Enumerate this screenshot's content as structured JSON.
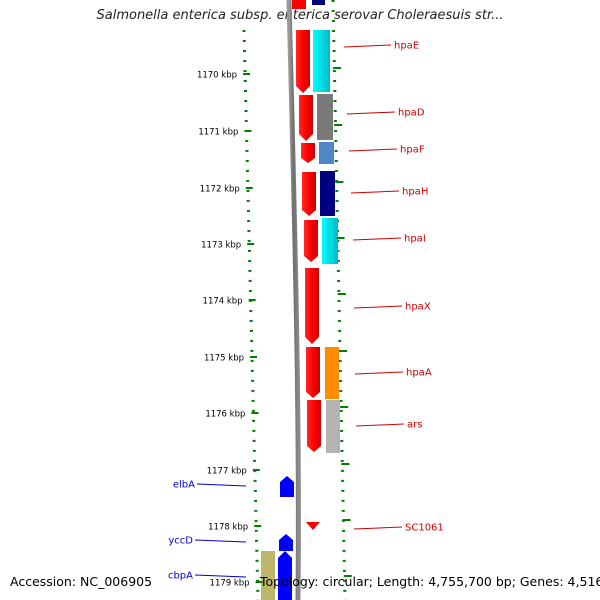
{
  "title": "Salmonella enterica subsp. enterica serovar Choleraesuis str...",
  "footer": {
    "accession": "Accession: NC_006905",
    "topology": "Topology: circular; Length: 4,755,700 bp; Genes: 4,516"
  },
  "colors": {
    "gene_red": "#ff0000",
    "cyan": "#00e5e5",
    "gray": "#808080",
    "steel_blue": "#4f86c6",
    "navy": "#000080",
    "orange": "#ff8c00",
    "light_gray": "#b3b3b3",
    "blue": "#0000ff",
    "khaki": "#bdb76b",
    "tick_green": "#008000",
    "label_red": "#cc0000",
    "label_blue": "#0000cc"
  },
  "ticks": [
    {
      "label": "1170 kbp"
    },
    {
      "label": "1171 kbp"
    },
    {
      "label": "1172 kbp"
    },
    {
      "label": "1173 kbp"
    },
    {
      "label": "1174 kbp"
    },
    {
      "label": "1175 kbp"
    },
    {
      "label": "1176 kbp"
    },
    {
      "label": "1177 kbp"
    },
    {
      "label": "1178 kbp"
    },
    {
      "label": "1179 kbp"
    }
  ],
  "right_genes": [
    {
      "label": "hpaE"
    },
    {
      "label": "hpaD"
    },
    {
      "label": "hpaF"
    },
    {
      "label": "hpaH"
    },
    {
      "label": "hpaI"
    },
    {
      "label": "hpaX"
    },
    {
      "label": "hpaA"
    },
    {
      "label": "ars"
    },
    {
      "label": "SC1061"
    }
  ],
  "left_genes": [
    {
      "label": "elbA"
    },
    {
      "label": "yccD"
    },
    {
      "label": "cbpA"
    }
  ]
}
